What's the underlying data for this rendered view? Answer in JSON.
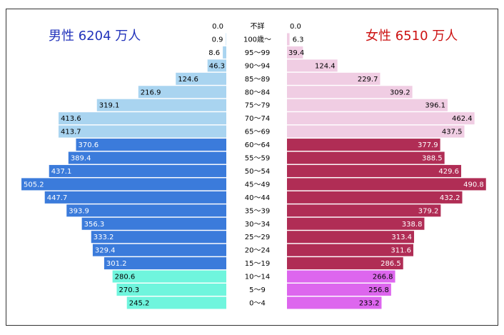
{
  "header": {
    "male_title": "男性 6204 万人",
    "female_title": "女性 6510 万人"
  },
  "colors": {
    "male_elder": "#a9d4f0",
    "male_working": "#3b7bdb",
    "male_child": "#6ff5dd",
    "female_elder": "#f0cde3",
    "female_working": "#b02d55",
    "female_child": "#dd66ee"
  },
  "chart_data": {
    "type": "bar",
    "subtype": "population-pyramid",
    "categories": [
      "不詳",
      "100歳～",
      "95～99",
      "90～94",
      "85～89",
      "80～84",
      "75～79",
      "70～74",
      "65～69",
      "60～64",
      "55～59",
      "50～54",
      "45～49",
      "40～44",
      "35～39",
      "30～34",
      "25～29",
      "20～24",
      "15～19",
      "10～14",
      "5～9",
      "0～4"
    ],
    "series": [
      {
        "name": "男性 6204 万人",
        "values": [
          0.0,
          0.9,
          8.6,
          46.3,
          124.6,
          216.9,
          319.1,
          413.6,
          413.7,
          370.6,
          389.4,
          437.1,
          505.2,
          447.7,
          393.9,
          356.3,
          333.2,
          329.4,
          301.2,
          280.6,
          270.3,
          245.2
        ],
        "labels": [
          "0.0",
          "0.9",
          "8.6",
          "46.3",
          "124.6",
          "216.9",
          "319.1",
          "413.6",
          "413.7",
          "370.6",
          "389.4",
          "437.1",
          "505.2",
          "447.7",
          "393.9",
          "356.3",
          "333.2",
          "329.4",
          "301.2",
          "280.6",
          "270.3",
          "245.2"
        ]
      },
      {
        "name": "女性 6510 万人",
        "values": [
          0.0,
          6.3,
          39.4,
          124.4,
          229.7,
          309.2,
          396.1,
          462.4,
          437.5,
          377.9,
          388.5,
          429.6,
          490.8,
          432.2,
          379.2,
          338.8,
          313.4,
          311.6,
          286.5,
          266.8,
          256.8,
          233.2
        ],
        "labels": [
          "0.0",
          "6.3",
          "39.4",
          "124.4",
          "229.7",
          "309.2",
          "396.1",
          "462.4",
          "437.5",
          "377.9",
          "388.5",
          "429.6",
          "490.8",
          "432.2",
          "379.2",
          "338.8",
          "313.4",
          "311.6",
          "286.5",
          "266.8",
          "256.8",
          "233.2"
        ]
      }
    ],
    "groups": [
      "elder",
      "elder",
      "elder",
      "elder",
      "elder",
      "elder",
      "elder",
      "elder",
      "elder",
      "working",
      "working",
      "working",
      "working",
      "working",
      "working",
      "working",
      "working",
      "working",
      "working",
      "child",
      "child",
      "child"
    ],
    "xlim": [
      0,
      510
    ],
    "grid": false,
    "legend": "none"
  }
}
